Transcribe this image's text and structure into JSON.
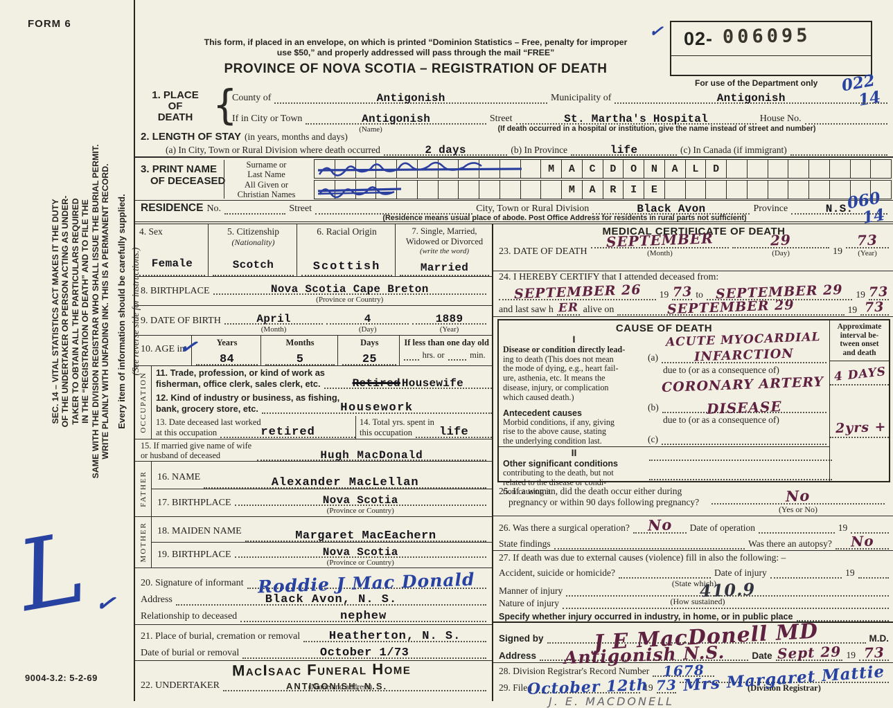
{
  "page": {
    "form_no": "FORM 6",
    "print_code": "9004-3.2: 5-2-69"
  },
  "sidebar": {
    "duty_lines": [
      "SEC. 14 – VITAL STATISTICS ACT MAKES IT THE DUTY",
      "OF THE UNDERTAKER OR PERSON ACTING AS UNDER-",
      "TAKER TO OBTAIN ALL THE PARTICULARS REQUIRED",
      "IN THE “REGISTRATION OF DEATH” AND TO FILE THE",
      "SAME WITH THE DIVISION REGISTRAR WHO SHALL ISSUE THE BURIAL PERMIT.",
      "WRITE PLAINLY WITH UNFADING INK. THIS IS A PERMANENT RECORD."
    ],
    "supplied_note": "Every item of information should be carefully supplied.",
    "reverse_note": "(See reverse side for instructions.)",
    "blue_mark": "L",
    "checkmark": "✓"
  },
  "header": {
    "mail_note_1": "This form, if placed in an envelope, on which is printed “Dominion Statistics – Free, penalty for improper",
    "mail_note_2": "use $50,” and properly addressed will pass through the mail “FREE”",
    "title": "PROVINCE OF NOVA SCOTIA – REGISTRATION OF DEATH",
    "checkmark": "✓",
    "serial_prefix": "02-",
    "serial_number": "006095",
    "dept_note": "For use of the Department only",
    "code_top": "022",
    "code_bottom": "14"
  },
  "s1": {
    "no": "1.",
    "title1": "PLACE",
    "title2": "OF",
    "title3": "DEATH",
    "county_label": "County of",
    "county": "Antigonish",
    "municipality_label": "Municipality of",
    "municipality": "Antigonish",
    "city_label": "If in City or Town",
    "city": "Antigonish",
    "city_sub": "(Name)",
    "street_label": "Street",
    "street": "St. Martha's Hospital",
    "house_label": "House No.",
    "hospital_note": "(If death occurred in a hospital or institution, give the name instead of street and number)"
  },
  "s2": {
    "heading": "2. LENGTH OF STAY",
    "heading_sub": "(in years, months and days)",
    "a_label": "(a) In City, Town or Rural Division where death occurred",
    "a": "2 days",
    "b_label": "(b) In Province",
    "b": "life",
    "c_label": "(c) In Canada (if immigrant)"
  },
  "s3": {
    "no": "3.",
    "title1": "PRINT NAME",
    "title2": "OF DECEASED",
    "surname_label1": "Surname or",
    "surname_label2": "Last Name",
    "given_label1": "All Given or",
    "given_label2": "Christian Names",
    "surname": "MACDONALD",
    "given": "MARIE"
  },
  "residence": {
    "label": "RESIDENCE",
    "no_label": "No.",
    "street_label": "Street",
    "city_label": "City, Town or Rural Division",
    "city": "Black Avon",
    "province_label": "Province",
    "province": "N.S.",
    "note": "(Residence means usual place of abode. Post Office Address for residents in rural parts not sufficient)",
    "code_top": "060",
    "code_bottom": "14"
  },
  "s4": {
    "label": "4. Sex",
    "value": "Female"
  },
  "s5": {
    "label": "5. Citizenship",
    "sub": "(Nationality)",
    "value": "Scotch"
  },
  "s6": {
    "label": "6. Racial Origin",
    "value": "Scottish"
  },
  "s7": {
    "label1": "7. Single, Married,",
    "label2": "Widowed or Divorced",
    "sub": "(write the word)",
    "value": "Married"
  },
  "s8": {
    "label": "8. BIRTHPLACE",
    "value": "Nova Scotia    Cape Breton",
    "sub": "(Province or Country)"
  },
  "s9": {
    "label": "9. DATE OF BIRTH",
    "month": "April",
    "month_sub": "(Month)",
    "day": "4",
    "day_sub": "(Day)",
    "year": "1889",
    "year_sub": "(Year)"
  },
  "s10": {
    "label": "10. AGE in",
    "check": "✓",
    "years_label": "Years",
    "years": "84",
    "months_label": "Months",
    "months": "5",
    "days_label": "Days",
    "days": "25",
    "less_label": "If less than one day old",
    "hrs_label": "hrs. or",
    "min_label": "min."
  },
  "occ": {
    "vertical": "OCCUPATION",
    "s11_l1": "11. Trade, profession, or kind of work as",
    "s11_l2": "fisherman, office clerk, sales clerk, etc.",
    "s11_struck": "Retired",
    "s11": "Housewife",
    "s12_l1": "12. Kind of industry or business, as fishing,",
    "s12_l2": "bank, grocery store, etc.",
    "s12": "Housework",
    "s13_l1": "13. Date deceased last worked",
    "s13_l2": "at this occupation",
    "s13": "retired",
    "s14_l1": "14. Total yrs. spent in",
    "s14_l2": "this occupation",
    "s14": "life"
  },
  "s15": {
    "l1": "15. If married give name of wife",
    "l2": "or husband of deceased",
    "value": "Hugh MacDonald"
  },
  "father": {
    "vertical": "FATHER",
    "name_label": "16. NAME",
    "name": "Alexander MacLellan",
    "bp_label": "17. BIRTHPLACE",
    "bp": "Nova Scotia",
    "bp_sub": "(Province or Country)"
  },
  "mother": {
    "vertical": "MOTHER",
    "maiden_label": "18. MAIDEN NAME",
    "maiden": "Margaret MacEachern",
    "bp_label": "19. BIRTHPLACE",
    "bp": "Nova Scotia",
    "bp_sub": "(Province or Country)"
  },
  "s20": {
    "sig_label": "20. Signature of informant",
    "signature": "Roddie J Mac Donald",
    "addr_label": "Address",
    "address": "Black Avon, N. S.",
    "rel_label": "Relationship to deceased",
    "relationship": "nephew"
  },
  "s21": {
    "place_label": "21. Place of burial, cremation or removal",
    "place": "Heatherton, N. S.",
    "date_label": "Date of burial or removal",
    "date": "October 1/73"
  },
  "s22": {
    "label": "22. UNDERTAKER",
    "stamp1": "MacIsaac Funeral Home",
    "stamp2": "ANTIGONISH, N.S.",
    "sub": "(Name and address)"
  },
  "med": {
    "title": "MEDICAL CERTIFICATE OF DEATH",
    "s23_label": "23. DATE OF DEATH",
    "s23_month": "SEPTEMBER",
    "s23_month_sub": "(Month)",
    "s23_day": "29",
    "s23_day_sub": "(Day)",
    "s23_y19": "19",
    "s23_year": "73",
    "s23_year_sub": "(Year)",
    "s24_label": "24. I HEREBY CERTIFY that I attended deceased from:",
    "s24_from": "SEPTEMBER  26",
    "s24_from_y19": "19",
    "s24_from_year": "73",
    "s24_to_label": "to",
    "s24_to": "SEPTEMBER 29",
    "s24_to_y19": "19",
    "s24_to_year": "73",
    "s24_saw_pre": "and last saw h",
    "s24_saw_er": "ER",
    "s24_saw_post": "alive on",
    "s24_saw": "SEPTEMBER   29",
    "s24_saw_y19": "19",
    "s24_saw_year": "73"
  },
  "cause": {
    "title": "CAUSE OF DEATH",
    "interval_l1": "Approximate",
    "interval_l2": "interval be-",
    "interval_l3": "tween onset",
    "interval_l4": "and death",
    "roman1": "I",
    "disease_desc_1": "Disease or condition directly lead-",
    "disease_desc_2": "ing to death (This does not mean",
    "disease_desc_3": "the mode of dying, e.g., heart fail-",
    "disease_desc_4": "ure, asthenia, etc. It means the",
    "disease_desc_5": "disease, injury, or complication",
    "disease_desc_6": "which caused death.)",
    "a_hw1": "ACUTE MYOCARDIAL",
    "a_label": "(a)",
    "a_hw2": "INFARCTION",
    "a_interval": "4 DAYS",
    "due_to_a": "due to (or as a consequence of)",
    "antecedent_head": "Antecedent causes",
    "antecedent_1": "Morbid conditions, if any, giving",
    "antecedent_2": "rise to the above cause, stating",
    "antecedent_3": "the underlying condition last.",
    "b_hw1": "CORONARY ARTERY",
    "b_label": "(b)",
    "b_hw2": "DISEASE",
    "b_interval": "2yrs +",
    "due_to_b": "due to (or as a consequence of)",
    "c_label": "(c)",
    "roman2": "II",
    "other_head": "Other significant conditions",
    "other_1": "contributing to the death, but not",
    "other_2": "related to the disease or condi-",
    "other_3": "tion causing it."
  },
  "m25": {
    "l1": "25. If a woman, did the death occur either during",
    "l2": "pregnancy or within 90 days following pregnancy?",
    "answer": "No",
    "sub": "(Yes or No)"
  },
  "m26": {
    "q1": "26. Was there a surgical operation?",
    "a1": "No",
    "q2": "Date of operation",
    "y19": "19",
    "q3": "State findings",
    "q4": "Was there an autopsy?",
    "a2": "No"
  },
  "m27": {
    "head": "27. If death was due to external causes (violence) fill in also the following: –",
    "accident_label": "Accident, suicide or homicide?",
    "state_which": "(State which)",
    "injury_date_label": "Date of injury",
    "y19": "19",
    "manner_label": "Manner of injury",
    "manner_code": "410.9",
    "how_sustained": "(How sustained)",
    "nature_label": "Nature of injury",
    "specify_label": "Specify whether injury occurred in industry, in home, or in public place"
  },
  "signed": {
    "label": "Signed by",
    "signature": "J E MacDonell MD",
    "md": "M.D.",
    "addr_label": "Address",
    "address": "Antigonish  N.S.",
    "date_label": "Date",
    "date": "Sept 29",
    "y19": "19",
    "year": "73"
  },
  "m28": {
    "label": "28. Division Registrar's Record Number",
    "value": "1678"
  },
  "m29": {
    "label": "29. Filed",
    "date": "October 12th",
    "y19": "19",
    "year": "73",
    "registrar": "Mrs Margaret Mattie",
    "sub": "(Division Registrar)",
    "pencil": "J. E. MACDONELL"
  }
}
